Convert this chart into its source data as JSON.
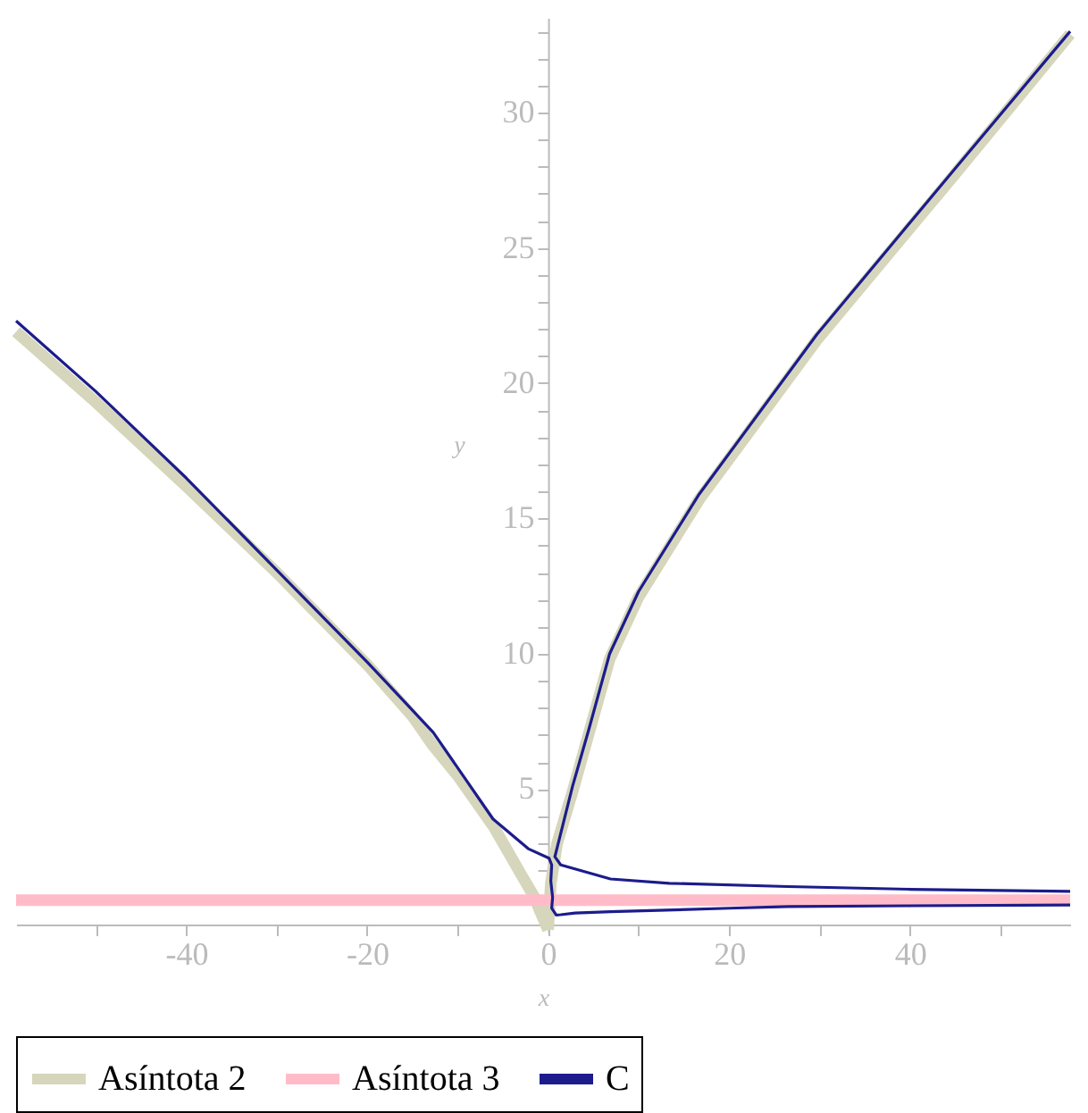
{
  "chart_data": {
    "type": "line",
    "xlabel": "x",
    "ylabel": "y",
    "xlim": [
      -58.8,
      57.7
    ],
    "ylim": [
      -0.3,
      33.5
    ],
    "xticks": [
      {
        "value": -50,
        "label": null
      },
      -40,
      {
        "value": -30,
        "label": null
      },
      -20,
      {
        "value": -10,
        "label": null
      },
      0,
      {
        "value": 10,
        "label": null
      },
      20,
      {
        "value": 30,
        "label": null
      },
      40,
      {
        "value": 50,
        "label": null
      }
    ],
    "yticks": [
      {
        "value": 1,
        "label": null
      },
      {
        "value": 2,
        "label": null
      },
      {
        "value": 3,
        "label": null
      },
      {
        "value": 4,
        "label": null
      },
      5,
      {
        "value": 6,
        "label": null
      },
      {
        "value": 7,
        "label": null
      },
      {
        "value": 8,
        "label": null
      },
      {
        "value": 9,
        "label": null
      },
      10,
      {
        "value": 11,
        "label": null
      },
      {
        "value": 12,
        "label": null
      },
      {
        "value": 13,
        "label": null
      },
      {
        "value": 14,
        "label": null
      },
      15,
      {
        "value": 16,
        "label": null
      },
      {
        "value": 17,
        "label": null
      },
      {
        "value": 18,
        "label": null
      },
      {
        "value": 19,
        "label": null
      },
      20,
      {
        "value": 21,
        "label": null
      },
      {
        "value": 22,
        "label": null
      },
      {
        "value": 23,
        "label": null
      },
      {
        "value": 24,
        "label": null
      },
      25,
      {
        "value": 26,
        "label": null
      },
      {
        "value": 27,
        "label": null
      },
      {
        "value": 28,
        "label": null
      },
      {
        "value": 29,
        "label": null
      },
      30,
      {
        "value": 31,
        "label": null
      },
      {
        "value": 32,
        "label": null
      },
      {
        "value": 33,
        "label": null
      }
    ],
    "grid": false,
    "legend": "bottom",
    "line_style": "solid",
    "marker": "none",
    "series": [
      {
        "name": "Asíntota 2",
        "color": "#d6d6bc",
        "x": [
          -58.8,
          -50,
          -40,
          -30,
          -20,
          -15,
          -12.7,
          -10,
          -6,
          -2.9,
          -1.5,
          -0.9,
          0,
          null,
          0,
          0.3,
          1,
          2.7,
          6.8,
          10,
          16.7,
          29.7,
          44.9,
          57.7
        ],
        "values": [
          21.9,
          19.3,
          16.2,
          13.0,
          9.6,
          7.7,
          6.6,
          5.5,
          3.6,
          1.8,
          1.0,
          0.5,
          -0.2,
          null,
          -0.2,
          1.5,
          3.0,
          4.9,
          9.8,
          12.1,
          15.7,
          21.6,
          27.7,
          32.9
        ]
      },
      {
        "name": "Asíntota 3",
        "color": "#ffbcc8",
        "x": [
          -58.8,
          57.7
        ],
        "values": [
          0.9,
          0.9
        ]
      },
      {
        "name": "C",
        "color": "#1c1c8c",
        "x": [
          57.7,
          44.9,
          29.7,
          16.7,
          10,
          6.8,
          4.5,
          2.7,
          1.5,
          0.75,
          1.4,
          6.9,
          13.4,
          26.5,
          40,
          57.7,
          null,
          -58.8,
          -50,
          -40,
          -30,
          -20,
          -12.7,
          -6.1,
          -2.2,
          0.1,
          0.4,
          0.3,
          0.5,
          0.4,
          0.9,
          1.4,
          3,
          6.9,
          20,
          26.5,
          40,
          57.7
        ],
        "values": [
          33.0,
          27.9,
          21.8,
          15.9,
          12.3,
          10.0,
          7.2,
          5.1,
          3.5,
          2.5,
          2.2,
          1.68,
          1.52,
          1.4,
          1.3,
          1.22,
          null,
          22.3,
          19.7,
          16.5,
          13.1,
          9.7,
          7.1,
          3.9,
          2.8,
          2.45,
          2.2,
          1.6,
          1.0,
          0.6,
          0.35,
          0.36,
          0.42,
          0.47,
          0.6,
          0.66,
          0.69,
          0.72
        ]
      }
    ]
  }
}
